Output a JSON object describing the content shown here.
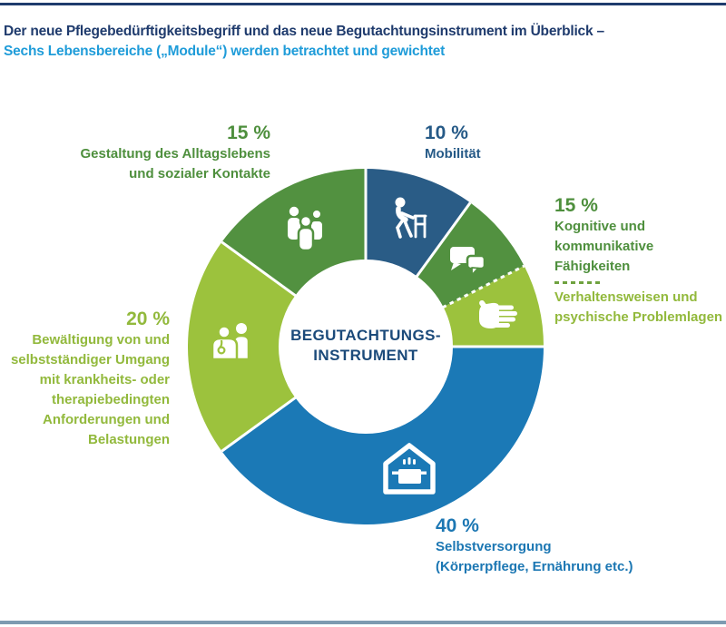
{
  "header": {
    "title_line1": "Der neue Pflegebedürftigkeitsbegriff und das neue Begutachtungsinstrument im Überblick –",
    "title_line2": "Sechs Lebensbereiche („Module“) werden betrachtet und gewichtet"
  },
  "colors": {
    "title_navy": "#1f3b6d",
    "subtitle_blue": "#1f9cd9",
    "dark_blue": "#2a5c86",
    "blue": "#1b79b6",
    "green": "#529140",
    "light_green": "#9cc23d",
    "label_green": "#4e8f3d",
    "label_light_green": "#92b93c",
    "label_blue": "#1c77b3",
    "label_dark_blue": "#265a87",
    "center_navy": "#1b4a7a",
    "dash_green": "#6fa23f",
    "footer_gray_blue": "#7e9bb1"
  },
  "chart_data": {
    "type": "pie",
    "title": "Sechs Lebensbereiche (Module) werden betrachtet und gewichtet",
    "units": "%",
    "total": 100,
    "hole_ratio": 0.49,
    "center_line1": "BEGUTACHTUNGS-",
    "center_line2": "INSTRUMENT",
    "segments": [
      {
        "id": "mobilitaet",
        "label": "Mobilität",
        "value": 10,
        "display_pct": "10 %",
        "color_key": "dark_blue",
        "icon": "walker-icon",
        "end_divider": "solid"
      },
      {
        "id": "kognitiv",
        "label": "Kognitive und kommunikative Fähigkeiten",
        "value": 7.5,
        "display_pct": "15 % (gemeinsam)",
        "color_key": "green",
        "icon": "speech-bubbles-icon",
        "end_divider": "dashed"
      },
      {
        "id": "verhalten",
        "label": "Verhaltensweisen und psychische Problemlagen",
        "value": 7.5,
        "display_pct": "15 % (gemeinsam)",
        "color_key": "light_green",
        "icon": "hand-icon",
        "end_divider": "solid"
      },
      {
        "id": "selbstversorgung",
        "label": "Selbstversorgung (Körperpflege, Ernährung etc.)",
        "value": 40,
        "display_pct": "40 %",
        "color_key": "blue",
        "icon": "house-pot-icon",
        "end_divider": "solid"
      },
      {
        "id": "bewaeltigung",
        "label": "Bewältigung von und selbstständiger Umgang mit krankheits- oder therapiebedingten Anforderungen und Belastungen",
        "value": 20,
        "display_pct": "20 %",
        "color_key": "light_green",
        "icon": "doctor-patient-icon",
        "end_divider": "solid"
      },
      {
        "id": "alltag",
        "label": "Gestaltung des Alltagslebens und sozialer Kontakte",
        "value": 15,
        "display_pct": "15 %",
        "color_key": "green",
        "icon": "people-group-icon",
        "end_divider": "solid"
      }
    ]
  },
  "callouts": {
    "alltag": {
      "pct": "15 %",
      "lines": [
        "Gestaltung des Alltagslebens",
        "und sozialer Kontakte"
      ]
    },
    "mobilitaet": {
      "pct": "10 %",
      "lines": [
        "Mobilität"
      ]
    },
    "kognitiv": {
      "pct": "15 %",
      "group1_lines": [
        "Kognitive und kommunikative",
        "Fähigkeiten"
      ],
      "group2_lines": [
        "Verhaltensweisen und",
        "psychische Problemlagen"
      ]
    },
    "bewaeltigung": {
      "pct": "20 %",
      "lines": [
        "Bewältigung von und",
        "selbstständiger Umgang",
        "mit krankheits- oder",
        "therapiebedingten",
        "Anforderungen und",
        "Belastungen"
      ]
    },
    "selbstversorgung": {
      "pct": "40 %",
      "lines": [
        "Selbstversorgung",
        "(Körperpflege, Ernährung etc.)"
      ]
    }
  }
}
